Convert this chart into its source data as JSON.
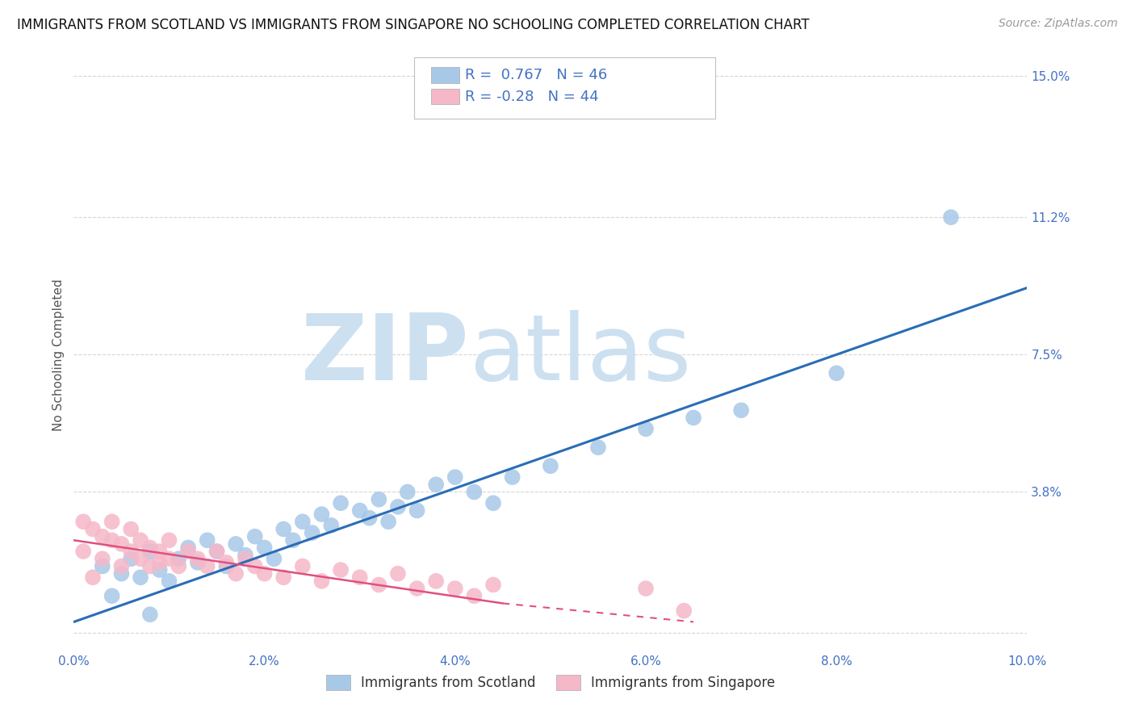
{
  "title": "IMMIGRANTS FROM SCOTLAND VS IMMIGRANTS FROM SINGAPORE NO SCHOOLING COMPLETED CORRELATION CHART",
  "source": "Source: ZipAtlas.com",
  "ylabel": "No Schooling Completed",
  "xlim": [
    0.0,
    0.1
  ],
  "ylim": [
    -0.005,
    0.155
  ],
  "ytick_vals": [
    0.0,
    0.038,
    0.075,
    0.112,
    0.15
  ],
  "ytick_labels": [
    "",
    "3.8%",
    "7.5%",
    "11.2%",
    "15.0%"
  ],
  "xtick_vals": [
    0.0,
    0.02,
    0.04,
    0.06,
    0.08,
    0.1
  ],
  "xtick_labels": [
    "0.0%",
    "2.0%",
    "4.0%",
    "6.0%",
    "8.0%",
    "10.0%"
  ],
  "r_scotland": 0.767,
  "n_scotland": 46,
  "r_singapore": -0.28,
  "n_singapore": 44,
  "color_scotland": "#a8c8e8",
  "color_singapore": "#f5b8c8",
  "trendline_scotland": "#2a6db5",
  "trendline_singapore": "#e05080",
  "legend_color": "#4472c4",
  "tick_color": "#4472c4",
  "watermark_zip_color": "#cce0f0",
  "watermark_atlas_color": "#cce0f0",
  "title_fontsize": 12,
  "tick_fontsize": 11,
  "source_fontsize": 10,
  "ylabel_fontsize": 11,
  "legend_fontsize": 13,
  "scotland_x": [
    0.003,
    0.005,
    0.006,
    0.007,
    0.008,
    0.009,
    0.01,
    0.011,
    0.012,
    0.013,
    0.014,
    0.015,
    0.016,
    0.017,
    0.018,
    0.019,
    0.02,
    0.021,
    0.022,
    0.023,
    0.024,
    0.025,
    0.026,
    0.027,
    0.028,
    0.03,
    0.031,
    0.032,
    0.033,
    0.034,
    0.035,
    0.036,
    0.038,
    0.04,
    0.042,
    0.044,
    0.046,
    0.05,
    0.055,
    0.06,
    0.065,
    0.07,
    0.08,
    0.092,
    0.004,
    0.008
  ],
  "scotland_y": [
    0.018,
    0.016,
    0.02,
    0.015,
    0.022,
    0.017,
    0.014,
    0.02,
    0.023,
    0.019,
    0.025,
    0.022,
    0.018,
    0.024,
    0.021,
    0.026,
    0.023,
    0.02,
    0.028,
    0.025,
    0.03,
    0.027,
    0.032,
    0.029,
    0.035,
    0.033,
    0.031,
    0.036,
    0.03,
    0.034,
    0.038,
    0.033,
    0.04,
    0.042,
    0.038,
    0.035,
    0.042,
    0.045,
    0.05,
    0.055,
    0.058,
    0.06,
    0.07,
    0.112,
    0.01,
    0.005
  ],
  "singapore_x": [
    0.001,
    0.002,
    0.003,
    0.003,
    0.004,
    0.004,
    0.005,
    0.005,
    0.006,
    0.006,
    0.007,
    0.007,
    0.008,
    0.008,
    0.009,
    0.009,
    0.01,
    0.01,
    0.011,
    0.012,
    0.013,
    0.014,
    0.015,
    0.016,
    0.017,
    0.018,
    0.019,
    0.02,
    0.022,
    0.024,
    0.026,
    0.028,
    0.03,
    0.032,
    0.034,
    0.036,
    0.038,
    0.04,
    0.042,
    0.044,
    0.001,
    0.002,
    0.06,
    0.064
  ],
  "singapore_y": [
    0.022,
    0.028,
    0.02,
    0.026,
    0.025,
    0.03,
    0.018,
    0.024,
    0.022,
    0.028,
    0.02,
    0.025,
    0.018,
    0.023,
    0.022,
    0.019,
    0.02,
    0.025,
    0.018,
    0.022,
    0.02,
    0.018,
    0.022,
    0.019,
    0.016,
    0.02,
    0.018,
    0.016,
    0.015,
    0.018,
    0.014,
    0.017,
    0.015,
    0.013,
    0.016,
    0.012,
    0.014,
    0.012,
    0.01,
    0.013,
    0.03,
    0.015,
    0.012,
    0.006
  ]
}
